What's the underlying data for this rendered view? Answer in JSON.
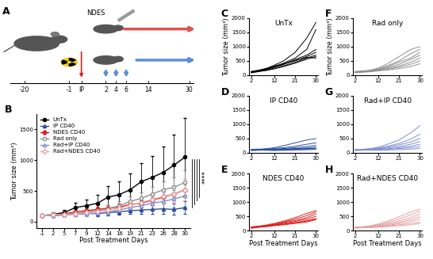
{
  "diagram": {
    "panel": "A",
    "device": "NDES",
    "timeline": [
      "-20",
      "-1",
      "IP",
      "2",
      "4",
      "6",
      "14",
      "30"
    ]
  },
  "chart_data": [
    {
      "panel": "B",
      "type": "line",
      "xlabel": "Post Treatment Days",
      "ylabel": "Tumor size (mm³)",
      "categories": [
        "-1",
        "2",
        "5",
        "7",
        "9",
        "12",
        "14",
        "16",
        "19",
        "21",
        "23",
        "26",
        "28",
        "30"
      ],
      "ylim": [
        -100,
        1750
      ],
      "yticks": [
        0,
        500,
        1000,
        1500
      ],
      "legend": "upper left",
      "annotations": [
        "****"
      ],
      "series": [
        {
          "name": "UnTx",
          "color": "#000000",
          "marker": "circle",
          "values": [
            100,
            120,
            150,
            230,
            260,
            300,
            400,
            440,
            520,
            650,
            720,
            800,
            920,
            1050
          ],
          "errors": [
            20,
            30,
            40,
            80,
            100,
            140,
            180,
            220,
            260,
            300,
            350,
            420,
            500,
            630
          ]
        },
        {
          "name": "IP CD40",
          "color": "#2a4ea0",
          "marker": "triangle",
          "values": [
            100,
            100,
            110,
            130,
            140,
            130,
            150,
            160,
            180,
            190,
            200,
            210,
            200,
            230
          ],
          "errors": [
            15,
            20,
            25,
            30,
            35,
            40,
            45,
            50,
            55,
            60,
            70,
            80,
            90,
            100
          ]
        },
        {
          "name": "NDES CD40",
          "color": "#e02020",
          "marker": "diamond",
          "values": [
            100,
            110,
            130,
            160,
            180,
            200,
            220,
            240,
            280,
            300,
            350,
            400,
            450,
            520
          ],
          "errors": [
            15,
            20,
            25,
            30,
            35,
            40,
            45,
            55,
            60,
            70,
            80,
            90,
            100,
            120
          ]
        },
        {
          "name": "Rad only",
          "color": "#909090",
          "marker": "open_circle",
          "values": [
            100,
            120,
            120,
            140,
            160,
            180,
            210,
            260,
            330,
            380,
            450,
            520,
            560,
            640
          ],
          "errors": [
            20,
            25,
            30,
            35,
            40,
            50,
            60,
            70,
            80,
            100,
            120,
            140,
            160,
            200
          ]
        },
        {
          "name": "Rad+IP CD40",
          "color": "#8090d0",
          "marker": "open_triangle",
          "values": [
            100,
            100,
            110,
            120,
            130,
            140,
            160,
            190,
            230,
            260,
            300,
            330,
            370,
            420
          ],
          "errors": [
            15,
            20,
            25,
            30,
            35,
            40,
            45,
            55,
            65,
            80,
            100,
            120,
            140,
            180
          ]
        },
        {
          "name": "Rad+NDES CD40",
          "color": "#e8a0a0",
          "marker": "open_diamond",
          "values": [
            100,
            120,
            110,
            130,
            150,
            170,
            190,
            220,
            270,
            310,
            360,
            410,
            450,
            520
          ],
          "errors": [
            15,
            20,
            25,
            30,
            35,
            40,
            50,
            60,
            70,
            80,
            100,
            120,
            140,
            170
          ]
        }
      ]
    },
    {
      "panel": "C",
      "type": "line",
      "title": "UnTx",
      "ylabel": "Tumor size (mm³)",
      "color": "#000000",
      "x": [
        2,
        5,
        9,
        12,
        16,
        21,
        26,
        30
      ],
      "xlim": [
        1,
        31
      ],
      "xticks": [
        2,
        12,
        21,
        30
      ],
      "ylim": [
        0,
        2000
      ],
      "yticks": [
        0,
        500,
        1000,
        1500,
        2000
      ],
      "series": [
        {
          "values": [
            100,
            150,
            250,
            350,
            500,
            800,
            1300,
            1850
          ]
        },
        {
          "values": [
            110,
            140,
            220,
            300,
            420,
            600,
            900,
            1600
          ]
        },
        {
          "values": [
            90,
            130,
            200,
            280,
            380,
            550,
            700,
            900
          ]
        },
        {
          "values": [
            120,
            160,
            230,
            320,
            400,
            500,
            650,
            800
          ]
        },
        {
          "values": [
            100,
            140,
            180,
            250,
            330,
            450,
            600,
            700
          ]
        },
        {
          "values": [
            80,
            120,
            170,
            220,
            300,
            420,
            560,
            650
          ]
        },
        {
          "values": [
            130,
            170,
            240,
            300,
            380,
            520,
            620,
            600
          ]
        }
      ]
    },
    {
      "panel": "D",
      "type": "line",
      "title": "IP CD40",
      "color": "#2a4ea0",
      "x": [
        2,
        5,
        9,
        12,
        16,
        21,
        26,
        30
      ],
      "xlim": [
        1,
        31
      ],
      "xticks": [
        2,
        12,
        21,
        30
      ],
      "ylim": [
        0,
        2000
      ],
      "yticks": [
        0,
        500,
        1000,
        1500,
        2000
      ],
      "series": [
        {
          "values": [
            100,
            120,
            150,
            180,
            250,
            350,
            450,
            500
          ]
        },
        {
          "values": [
            110,
            120,
            130,
            150,
            180,
            230,
            300,
            350
          ]
        },
        {
          "values": [
            90,
            100,
            120,
            130,
            150,
            180,
            220,
            260
          ]
        },
        {
          "values": [
            100,
            110,
            120,
            110,
            130,
            150,
            170,
            200
          ]
        },
        {
          "values": [
            120,
            130,
            110,
            100,
            120,
            140,
            150,
            160
          ]
        },
        {
          "values": [
            80,
            90,
            100,
            110,
            100,
            120,
            130,
            140
          ]
        },
        {
          "values": [
            100,
            100,
            90,
            80,
            90,
            100,
            110,
            120
          ]
        }
      ]
    },
    {
      "panel": "E",
      "type": "line",
      "title": "NDES CD40",
      "xlabel": "Post Treatment Days",
      "color": "#e02020",
      "x": [
        2,
        5,
        9,
        12,
        16,
        21,
        26,
        30
      ],
      "xlim": [
        1,
        31
      ],
      "xticks": [
        2,
        12,
        21,
        30
      ],
      "ylim": [
        0,
        2000
      ],
      "yticks": [
        0,
        500,
        1000,
        1500,
        2000
      ],
      "series": [
        {
          "values": [
            100,
            150,
            200,
            250,
            330,
            450,
            600,
            700
          ]
        },
        {
          "values": [
            120,
            140,
            180,
            220,
            300,
            400,
            520,
            650
          ]
        },
        {
          "values": [
            90,
            130,
            170,
            210,
            280,
            350,
            450,
            580
          ]
        },
        {
          "values": [
            110,
            140,
            160,
            200,
            250,
            320,
            400,
            500
          ]
        },
        {
          "values": [
            100,
            120,
            150,
            180,
            220,
            280,
            350,
            420
          ]
        },
        {
          "values": [
            80,
            110,
            140,
            170,
            200,
            250,
            300,
            380
          ]
        },
        {
          "values": [
            130,
            150,
            170,
            190,
            230,
            270,
            330,
            400
          ]
        }
      ]
    },
    {
      "panel": "F",
      "type": "line",
      "title": "Rad only",
      "ylabel": "Tumor size (mm³)",
      "color": "#909090",
      "x": [
        2,
        5,
        9,
        12,
        16,
        21,
        26,
        30
      ],
      "xlim": [
        1,
        31
      ],
      "xticks": [
        2,
        12,
        21,
        30
      ],
      "ylim": [
        0,
        2000
      ],
      "yticks": [
        0,
        500,
        1000,
        1500,
        2000
      ],
      "series": [
        {
          "values": [
            100,
            130,
            180,
            250,
            400,
            650,
            900,
            1000
          ]
        },
        {
          "values": [
            120,
            140,
            170,
            220,
            330,
            500,
            750,
            900
          ]
        },
        {
          "values": [
            90,
            120,
            160,
            200,
            300,
            450,
            600,
            800
          ]
        },
        {
          "values": [
            110,
            130,
            150,
            190,
            260,
            380,
            550,
            700
          ]
        },
        {
          "values": [
            100,
            110,
            140,
            170,
            230,
            320,
            450,
            600
          ]
        },
        {
          "values": [
            80,
            100,
            120,
            150,
            200,
            280,
            380,
            500
          ]
        },
        {
          "values": [
            130,
            140,
            150,
            160,
            180,
            230,
            300,
            400
          ]
        }
      ]
    },
    {
      "panel": "G",
      "type": "line",
      "title": "Rad+IP CD40",
      "color": "#8090d0",
      "x": [
        2,
        5,
        9,
        12,
        16,
        21,
        26,
        30
      ],
      "xlim": [
        1,
        31
      ],
      "xticks": [
        2,
        12,
        21,
        30
      ],
      "ylim": [
        0,
        2000
      ],
      "yticks": [
        0,
        500,
        1000,
        1500,
        2000
      ],
      "series": [
        {
          "values": [
            100,
            120,
            150,
            200,
            300,
            450,
            700,
            950
          ]
        },
        {
          "values": [
            110,
            120,
            140,
            170,
            230,
            330,
            480,
            650
          ]
        },
        {
          "values": [
            90,
            110,
            130,
            150,
            200,
            280,
            380,
            500
          ]
        },
        {
          "values": [
            100,
            110,
            120,
            140,
            170,
            220,
            300,
            400
          ]
        },
        {
          "values": [
            120,
            110,
            110,
            120,
            140,
            180,
            230,
            300
          ]
        },
        {
          "values": [
            80,
            90,
            100,
            110,
            120,
            150,
            180,
            220
          ]
        },
        {
          "values": [
            100,
            100,
            90,
            90,
            100,
            110,
            130,
            150
          ]
        }
      ]
    },
    {
      "panel": "H",
      "type": "line",
      "title": "Rad+NDES CD40",
      "xlabel": "Post Treatment Days",
      "color": "#e8a0a0",
      "x": [
        2,
        5,
        9,
        12,
        16,
        21,
        26,
        30
      ],
      "xlim": [
        1,
        31
      ],
      "xticks": [
        2,
        12,
        21,
        30
      ],
      "ylim": [
        0,
        2000
      ],
      "yticks": [
        0,
        500,
        1000,
        1500,
        2000
      ],
      "series": [
        {
          "values": [
            100,
            130,
            170,
            230,
            330,
            480,
            650,
            750
          ]
        },
        {
          "values": [
            120,
            130,
            160,
            200,
            280,
            400,
            550,
            680
          ]
        },
        {
          "values": [
            90,
            110,
            140,
            180,
            240,
            330,
            450,
            580
          ]
        },
        {
          "values": [
            110,
            120,
            140,
            160,
            210,
            280,
            380,
            480
          ]
        },
        {
          "values": [
            100,
            110,
            120,
            140,
            180,
            240,
            320,
            400
          ]
        },
        {
          "values": [
            80,
            100,
            110,
            130,
            160,
            200,
            250,
            300
          ]
        },
        {
          "values": [
            130,
            120,
            110,
            120,
            140,
            170,
            200,
            250
          ]
        }
      ]
    }
  ]
}
